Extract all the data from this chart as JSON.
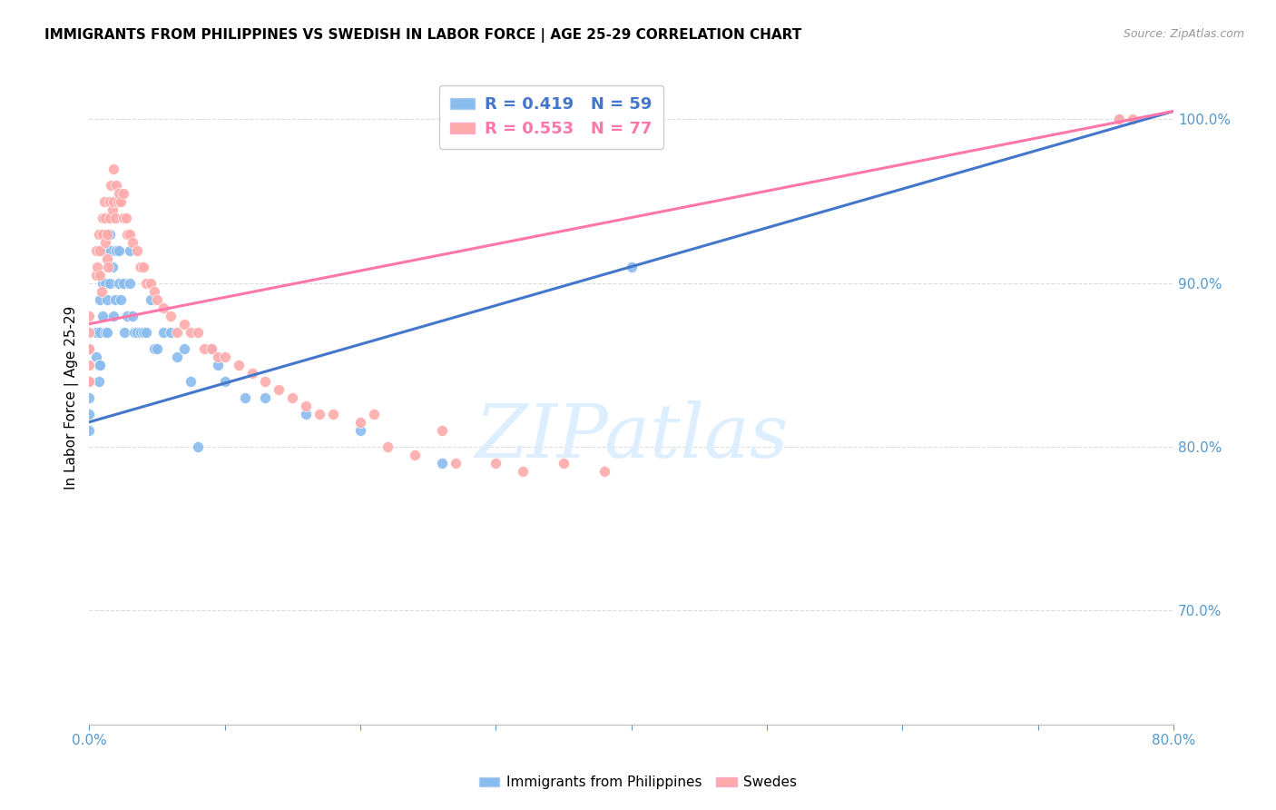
{
  "title": "IMMIGRANTS FROM PHILIPPINES VS SWEDISH IN LABOR FORCE | AGE 25-29 CORRELATION CHART",
  "source": "Source: ZipAtlas.com",
  "ylabel": "In Labor Force | Age 25-29",
  "xlim": [
    0.0,
    0.8
  ],
  "ylim": [
    0.63,
    1.03
  ],
  "yticks": [
    0.7,
    0.8,
    0.9,
    1.0
  ],
  "ytick_labels": [
    "70.0%",
    "80.0%",
    "90.0%",
    "100.0%"
  ],
  "xticks": [
    0.0,
    0.1,
    0.2,
    0.3,
    0.4,
    0.5,
    0.6,
    0.7,
    0.8
  ],
  "xtick_labels": [
    "0.0%",
    "",
    "",
    "",
    "",
    "",
    "",
    "",
    "80.0%"
  ],
  "blue_color": "#88BBEE",
  "pink_color": "#FFAAAA",
  "blue_line_color": "#4477CC",
  "pink_line_color": "#FF77AA",
  "axis_color": "#5599CC",
  "grid_color": "#DDDDDD",
  "watermark_text": "ZIPatlas",
  "watermark_color": "#DDEEFF",
  "legend_R_blue": "0.419",
  "legend_N_blue": "59",
  "legend_R_pink": "0.553",
  "legend_N_pink": "77",
  "blue_line_x0": 0.0,
  "blue_line_y0": 0.815,
  "blue_line_x1": 0.8,
  "blue_line_y1": 1.005,
  "pink_line_x0": 0.0,
  "pink_line_y0": 0.875,
  "pink_line_x1": 0.8,
  "pink_line_y1": 1.005,
  "blue_points_x": [
    0.0,
    0.0,
    0.0,
    0.0,
    0.0,
    0.005,
    0.005,
    0.007,
    0.007,
    0.008,
    0.008,
    0.008,
    0.01,
    0.01,
    0.01,
    0.012,
    0.012,
    0.013,
    0.013,
    0.015,
    0.015,
    0.016,
    0.017,
    0.018,
    0.019,
    0.02,
    0.022,
    0.022,
    0.023,
    0.025,
    0.026,
    0.028,
    0.03,
    0.03,
    0.032,
    0.033,
    0.035,
    0.038,
    0.04,
    0.042,
    0.045,
    0.048,
    0.05,
    0.055,
    0.06,
    0.065,
    0.07,
    0.075,
    0.08,
    0.09,
    0.095,
    0.1,
    0.115,
    0.13,
    0.16,
    0.2,
    0.26,
    0.4,
    0.76
  ],
  "blue_points_y": [
    0.84,
    0.84,
    0.83,
    0.82,
    0.81,
    0.87,
    0.855,
    0.85,
    0.84,
    0.89,
    0.87,
    0.85,
    0.92,
    0.9,
    0.88,
    0.9,
    0.87,
    0.89,
    0.87,
    0.93,
    0.9,
    0.92,
    0.91,
    0.88,
    0.89,
    0.92,
    0.92,
    0.9,
    0.89,
    0.9,
    0.87,
    0.88,
    0.92,
    0.9,
    0.88,
    0.87,
    0.87,
    0.87,
    0.87,
    0.87,
    0.89,
    0.86,
    0.86,
    0.87,
    0.87,
    0.855,
    0.86,
    0.84,
    0.8,
    0.86,
    0.85,
    0.84,
    0.83,
    0.83,
    0.82,
    0.81,
    0.79,
    0.91,
    1.0
  ],
  "pink_points_x": [
    0.0,
    0.0,
    0.0,
    0.0,
    0.0,
    0.0,
    0.0,
    0.005,
    0.005,
    0.006,
    0.007,
    0.008,
    0.008,
    0.009,
    0.01,
    0.01,
    0.011,
    0.012,
    0.012,
    0.013,
    0.013,
    0.014,
    0.015,
    0.015,
    0.016,
    0.017,
    0.018,
    0.018,
    0.019,
    0.02,
    0.021,
    0.022,
    0.023,
    0.025,
    0.025,
    0.027,
    0.028,
    0.03,
    0.032,
    0.035,
    0.037,
    0.038,
    0.04,
    0.042,
    0.045,
    0.048,
    0.05,
    0.055,
    0.06,
    0.065,
    0.07,
    0.075,
    0.08,
    0.085,
    0.09,
    0.095,
    0.1,
    0.11,
    0.12,
    0.13,
    0.14,
    0.15,
    0.16,
    0.17,
    0.18,
    0.2,
    0.21,
    0.22,
    0.24,
    0.26,
    0.27,
    0.3,
    0.32,
    0.35,
    0.38,
    0.76,
    0.77
  ],
  "pink_points_y": [
    0.88,
    0.87,
    0.86,
    0.86,
    0.85,
    0.84,
    0.84,
    0.92,
    0.905,
    0.91,
    0.93,
    0.92,
    0.905,
    0.895,
    0.94,
    0.93,
    0.95,
    0.94,
    0.925,
    0.93,
    0.915,
    0.91,
    0.95,
    0.94,
    0.96,
    0.945,
    0.97,
    0.95,
    0.94,
    0.96,
    0.95,
    0.955,
    0.95,
    0.955,
    0.94,
    0.94,
    0.93,
    0.93,
    0.925,
    0.92,
    0.91,
    0.91,
    0.91,
    0.9,
    0.9,
    0.895,
    0.89,
    0.885,
    0.88,
    0.87,
    0.875,
    0.87,
    0.87,
    0.86,
    0.86,
    0.855,
    0.855,
    0.85,
    0.845,
    0.84,
    0.835,
    0.83,
    0.825,
    0.82,
    0.82,
    0.815,
    0.82,
    0.8,
    0.795,
    0.81,
    0.79,
    0.79,
    0.785,
    0.79,
    0.785,
    1.0,
    1.0
  ]
}
